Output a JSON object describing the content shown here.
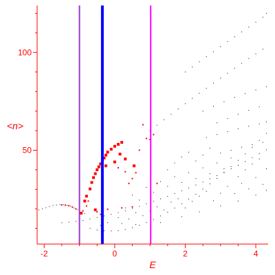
{
  "chart_data": {
    "type": "scatter",
    "title": "",
    "xlabel": "E",
    "ylabel": "<n>",
    "xlim": [
      -2.2,
      4.35
    ],
    "ylim": [
      2,
      124
    ],
    "xticks": [
      -2,
      0,
      2,
      4
    ],
    "yticks": [
      50,
      100
    ],
    "colors": {
      "axis": "#ff0000",
      "text": "#ff0000",
      "background_points": "#000000",
      "highlight_points": "#ff0000",
      "line_purple": "#9933cc",
      "line_blue": "#0000ff",
      "line_magenta": "#ff00ff"
    },
    "vertical_lines": [
      {
        "x": -1.0,
        "color": "#9933cc"
      },
      {
        "x": -0.35,
        "color": "#0000ff"
      },
      {
        "x": 1.02,
        "color": "#ff00ff"
      }
    ],
    "series": [
      {
        "color": "#000000",
        "marker_size": 1,
        "points": [
          [
            -2.15,
            19.5
          ],
          [
            -2.05,
            20.0
          ],
          [
            -1.95,
            20.6
          ],
          [
            -1.85,
            21.2
          ],
          [
            -1.75,
            21.7
          ],
          [
            -1.65,
            22.0
          ],
          [
            -1.55,
            22.2
          ],
          [
            -1.45,
            22.1
          ],
          [
            -1.35,
            21.9
          ],
          [
            -1.25,
            21.4
          ],
          [
            -1.15,
            20.5
          ],
          [
            -1.05,
            19.6
          ],
          [
            -0.95,
            18.2
          ],
          [
            -0.85,
            17.6
          ],
          [
            -1.5,
            12.9
          ],
          [
            -1.3,
            13.2
          ],
          [
            -1.1,
            13.6
          ],
          [
            -0.9,
            14.1
          ],
          [
            -0.7,
            14.8
          ],
          [
            -0.5,
            15.6
          ],
          [
            -0.3,
            16.4
          ],
          [
            -0.1,
            17.2
          ],
          [
            0.1,
            18.1
          ],
          [
            0.3,
            19.0
          ],
          [
            0.5,
            20.2
          ],
          [
            0.7,
            21.3
          ],
          [
            0.9,
            22.6
          ],
          [
            1.1,
            23.8
          ],
          [
            1.3,
            25.1
          ],
          [
            1.5,
            26.4
          ],
          [
            1.7,
            27.8
          ],
          [
            1.9,
            29.2
          ],
          [
            2.1,
            30.7
          ],
          [
            2.3,
            32.2
          ],
          [
            2.5,
            33.7
          ],
          [
            2.7,
            35.4
          ],
          [
            2.9,
            37.0
          ],
          [
            3.1,
            38.7
          ],
          [
            3.3,
            40.5
          ],
          [
            3.5,
            42.3
          ],
          [
            3.7,
            44.2
          ],
          [
            3.9,
            46.2
          ],
          [
            4.1,
            48.2
          ],
          [
            4.3,
            50.2
          ],
          [
            -0.7,
            10.0
          ],
          [
            -0.5,
            9.2
          ],
          [
            -0.3,
            8.8
          ],
          [
            -0.1,
            8.7
          ],
          [
            0.1,
            8.9
          ],
          [
            0.3,
            9.5
          ],
          [
            0.5,
            10.4
          ],
          [
            0.7,
            11.6
          ],
          [
            0.9,
            13.0
          ],
          [
            1.1,
            14.6
          ],
          [
            1.3,
            16.4
          ],
          [
            1.5,
            18.3
          ],
          [
            1.7,
            20.4
          ],
          [
            1.9,
            22.6
          ],
          [
            2.1,
            25.0
          ],
          [
            2.3,
            27.5
          ],
          [
            2.5,
            30.1
          ],
          [
            2.7,
            32.8
          ],
          [
            2.9,
            35.6
          ],
          [
            3.1,
            38.5
          ],
          [
            3.3,
            41.6
          ],
          [
            3.5,
            44.8
          ],
          [
            3.7,
            48.1
          ],
          [
            3.9,
            51.5
          ],
          [
            4.1,
            55.0
          ],
          [
            4.3,
            58.6
          ],
          [
            1.0,
            60.0
          ],
          [
            1.2,
            62.8
          ],
          [
            1.4,
            65.6
          ],
          [
            1.6,
            68.4
          ],
          [
            1.8,
            71.1
          ],
          [
            2.0,
            73.8
          ],
          [
            2.2,
            76.5
          ],
          [
            2.4,
            79.1
          ],
          [
            2.6,
            81.7
          ],
          [
            2.8,
            84.3
          ],
          [
            3.0,
            86.9
          ],
          [
            3.2,
            89.4
          ],
          [
            3.4,
            91.9
          ],
          [
            3.6,
            94.4
          ],
          [
            3.8,
            96.9
          ],
          [
            4.0,
            99.3
          ],
          [
            4.2,
            101.7
          ],
          [
            2.0,
            90.0
          ],
          [
            2.2,
            92.6
          ],
          [
            2.4,
            95.2
          ],
          [
            2.6,
            97.8
          ],
          [
            2.8,
            100.4
          ],
          [
            3.0,
            103.0
          ],
          [
            3.2,
            105.5
          ],
          [
            3.4,
            108.0
          ],
          [
            3.6,
            110.5
          ],
          [
            3.8,
            113.0
          ],
          [
            4.0,
            115.5
          ],
          [
            4.2,
            118.0
          ],
          [
            4.3,
            120.0
          ],
          [
            2.5,
            70.0
          ],
          [
            2.8,
            72.5
          ],
          [
            3.1,
            74.8
          ],
          [
            3.4,
            77.0
          ],
          [
            3.7,
            79.0
          ],
          [
            4.0,
            80.8
          ],
          [
            4.3,
            82.5
          ],
          [
            2.9,
            64.0
          ],
          [
            3.2,
            66.2
          ],
          [
            3.5,
            68.4
          ],
          [
            3.8,
            70.4
          ],
          [
            4.1,
            72.2
          ],
          [
            2.6,
            56.5
          ],
          [
            2.9,
            58.0
          ],
          [
            3.2,
            59.5
          ],
          [
            3.5,
            61.0
          ],
          [
            3.8,
            62.3
          ],
          [
            4.1,
            63.5
          ],
          [
            4.3,
            64.5
          ],
          [
            3.0,
            48.5
          ],
          [
            3.3,
            50.0
          ],
          [
            3.6,
            51.5
          ],
          [
            3.9,
            52.8
          ],
          [
            4.2,
            54.0
          ],
          [
            -0.2,
            13.0
          ],
          [
            0.2,
            12.5
          ],
          [
            0.4,
            14.8
          ],
          [
            0.6,
            12.0
          ],
          [
            0.8,
            16.5
          ],
          [
            1.0,
            18.8
          ],
          [
            1.2,
            21.0
          ],
          [
            1.4,
            19.5
          ],
          [
            1.6,
            23.5
          ],
          [
            1.8,
            25.2
          ],
          [
            2.0,
            20.5
          ],
          [
            2.2,
            23.8
          ],
          [
            2.4,
            26.5
          ],
          [
            2.6,
            29.0
          ],
          [
            2.8,
            24.2
          ],
          [
            3.0,
            28.0
          ],
          [
            3.2,
            31.5
          ],
          [
            3.4,
            27.8
          ],
          [
            3.6,
            33.0
          ],
          [
            3.8,
            30.2
          ],
          [
            4.0,
            36.0
          ],
          [
            4.2,
            32.5
          ],
          [
            0.5,
            27.0
          ],
          [
            0.7,
            24.5
          ],
          [
            0.9,
            31.0
          ],
          [
            1.1,
            28.5
          ],
          [
            1.3,
            34.0
          ],
          [
            1.5,
            31.5
          ],
          [
            1.7,
            36.5
          ],
          [
            1.9,
            33.5
          ],
          [
            2.1,
            38.5
          ],
          [
            2.3,
            35.5
          ],
          [
            2.5,
            41.0
          ],
          [
            2.7,
            38.0
          ],
          [
            2.9,
            43.5
          ],
          [
            3.1,
            40.5
          ],
          [
            3.3,
            46.0
          ],
          [
            3.5,
            36.5
          ],
          [
            3.7,
            40.0
          ],
          [
            3.9,
            43.0
          ],
          [
            4.1,
            45.5
          ],
          [
            4.3,
            40.5
          ],
          [
            1.5,
            40.0
          ],
          [
            1.7,
            43.5
          ],
          [
            1.9,
            46.5
          ],
          [
            2.1,
            49.0
          ],
          [
            2.3,
            44.5
          ],
          [
            2.5,
            47.5
          ],
          [
            2.7,
            51.0
          ],
          [
            0.3,
            20.5
          ],
          [
            0.1,
            15.5
          ],
          [
            -0.4,
            11.5
          ],
          [
            0.6,
            18.0
          ],
          [
            1.3,
            13.0
          ],
          [
            1.9,
            16.0
          ],
          [
            2.4,
            18.5
          ],
          [
            3.0,
            21.5
          ],
          [
            3.5,
            24.0
          ],
          [
            4.0,
            27.0
          ],
          [
            4.3,
            29.5
          ]
        ]
      },
      {
        "color": "#ff0000",
        "marker_size": 2,
        "points": [
          [
            -1.5,
            22.0
          ],
          [
            -1.4,
            21.9
          ],
          [
            -1.3,
            21.6
          ],
          [
            -1.2,
            20.9
          ],
          [
            -1.1,
            20.0
          ],
          [
            -0.9,
            19.0
          ],
          [
            -0.8,
            21.5
          ],
          [
            -0.75,
            24.0
          ],
          [
            -0.5,
            18.5
          ],
          [
            -0.4,
            17.2
          ],
          [
            -0.2,
            19.8
          ],
          [
            0.2,
            20.5
          ],
          [
            0.4,
            33.0
          ],
          [
            0.5,
            35.5
          ],
          [
            0.6,
            38.5
          ],
          [
            0.7,
            50.0
          ],
          [
            0.9,
            56.0
          ],
          [
            1.0,
            55.5
          ],
          [
            1.1,
            58.0
          ],
          [
            0.8,
            63.0
          ],
          [
            0.5,
            21.0
          ],
          [
            1.2,
            33.0
          ],
          [
            0.1,
            41.0
          ],
          [
            0.3,
            39.0
          ]
        ]
      },
      {
        "color": "#ff0000",
        "marker_size": 4,
        "points": [
          [
            -0.95,
            17.8
          ],
          [
            -0.85,
            24.0
          ],
          [
            -0.8,
            26.5
          ],
          [
            -0.7,
            30.2
          ],
          [
            -0.6,
            36.0
          ],
          [
            -0.55,
            38.0
          ],
          [
            -0.5,
            40.0
          ],
          [
            -0.45,
            41.5
          ],
          [
            -0.4,
            43.0
          ],
          [
            -0.35,
            44.5
          ],
          [
            -0.3,
            46.0
          ],
          [
            -0.25,
            47.5
          ],
          [
            -0.2,
            49.0
          ],
          [
            -0.1,
            50.5
          ],
          [
            0.0,
            52.0
          ],
          [
            0.1,
            53.0
          ],
          [
            0.2,
            54.0
          ],
          [
            -0.25,
            42.0
          ],
          [
            0.0,
            44.0
          ],
          [
            0.15,
            48.0
          ],
          [
            0.3,
            45.5
          ],
          [
            0.55,
            42.0
          ],
          [
            -0.55,
            19.5
          ],
          [
            -0.65,
            33.5
          ]
        ]
      }
    ]
  }
}
